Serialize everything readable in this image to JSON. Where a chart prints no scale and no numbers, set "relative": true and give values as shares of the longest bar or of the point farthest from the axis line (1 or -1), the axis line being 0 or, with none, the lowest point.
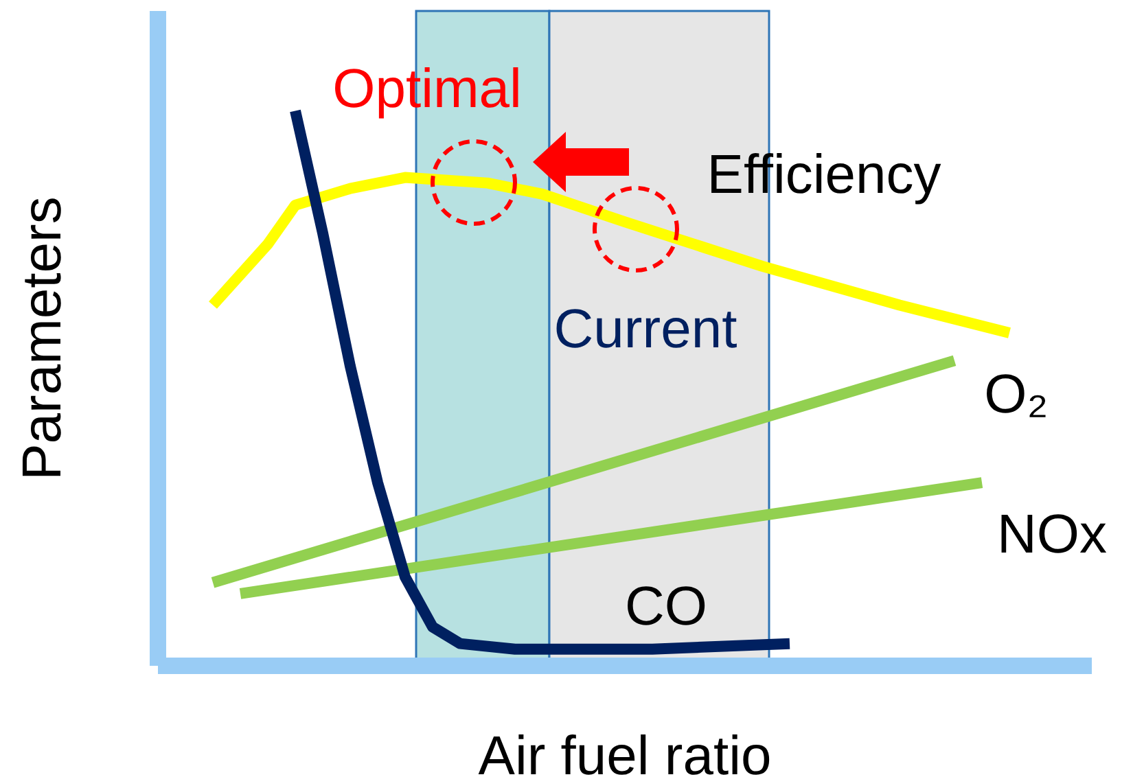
{
  "chart_data": {
    "type": "line",
    "relative": true,
    "xlabel": "Air fuel ratio",
    "ylabel": "Parameters",
    "grid": false,
    "legend": false,
    "marker": "none",
    "categories": [
      null,
      null,
      null,
      null,
      null,
      null,
      null,
      null,
      null,
      null,
      null,
      null,
      null,
      null,
      null,
      null,
      null,
      null,
      null,
      null,
      null,
      null,
      null,
      null,
      null,
      null,
      null,
      null,
      null,
      null,
      null,
      null,
      null,
      null,
      null
    ],
    "series": [
      {
        "name": "Efficiency",
        "color": "#ffff00",
        "values": [
          null,
          null,
          0.65,
          null,
          0.76,
          0.83,
          null,
          0.86,
          null,
          0.88,
          null,
          null,
          0.87,
          null,
          0.85,
          null,
          null,
          0.8,
          null,
          null,
          null,
          null,
          0.72,
          null,
          null,
          null,
          null,
          0.65,
          null,
          null,
          null,
          0.6,
          null,
          null,
          null
        ]
      },
      {
        "name": "O₂",
        "color": "#92d050",
        "values": [
          null,
          null,
          0.15,
          null,
          null,
          null,
          null,
          null,
          null,
          null,
          null,
          null,
          null,
          null,
          null,
          null,
          null,
          null,
          null,
          null,
          null,
          null,
          null,
          null,
          null,
          null,
          null,
          null,
          null,
          0.55,
          null,
          null,
          null,
          null,
          null
        ]
      },
      {
        "name": "NOx",
        "color": "#92d050",
        "values": [
          null,
          null,
          null,
          0.13,
          null,
          null,
          null,
          null,
          null,
          null,
          null,
          null,
          null,
          null,
          null,
          null,
          null,
          null,
          null,
          null,
          null,
          null,
          null,
          null,
          null,
          null,
          null,
          null,
          null,
          null,
          0.33,
          null,
          null,
          null,
          null
        ]
      },
      {
        "name": "CO",
        "color": "#002060",
        "values": [
          null,
          null,
          null,
          null,
          null,
          1.0,
          0.78,
          0.54,
          0.33,
          0.16,
          0.07,
          0.04,
          null,
          0.03,
          null,
          null,
          null,
          null,
          0.03,
          null,
          null,
          null,
          null,
          0.04,
          null,
          null,
          null,
          null,
          null,
          null,
          null,
          null,
          null,
          null,
          null
        ]
      }
    ],
    "annotations": [
      "Optimal",
      "Current"
    ]
  }
}
